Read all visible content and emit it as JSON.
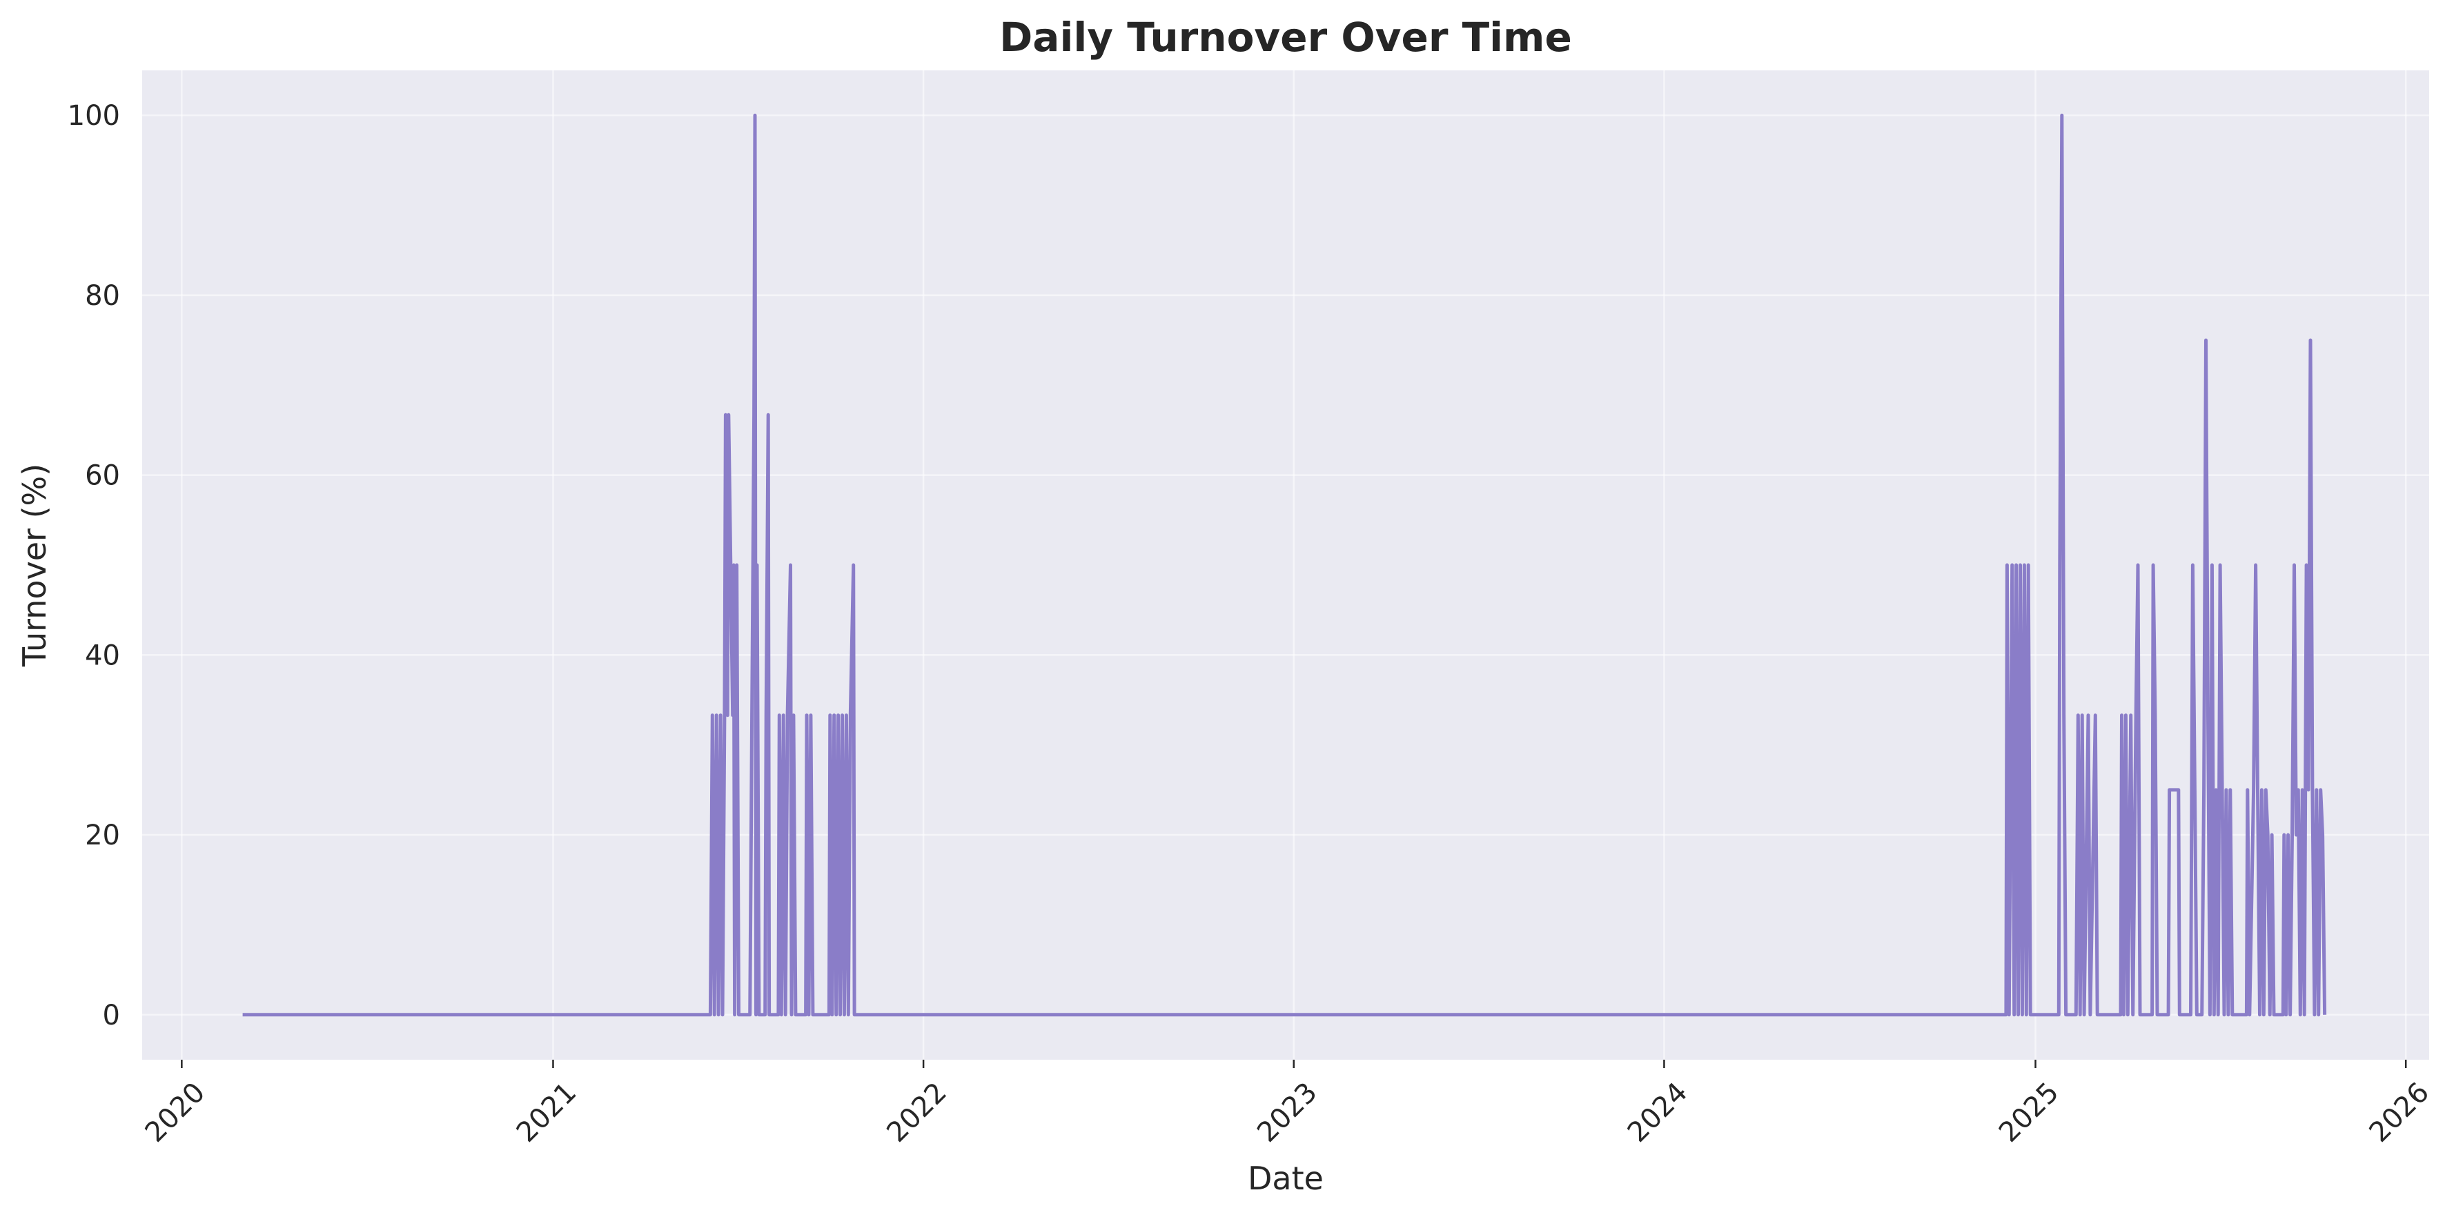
{
  "chart_data": {
    "type": "line",
    "title": "Daily Turnover Over Time",
    "xlabel": "Date",
    "ylabel": "Turnover (%)",
    "xlim": [
      "2019-11-23",
      "2026-01-24"
    ],
    "ylim": [
      -5,
      105
    ],
    "x_ticks": [
      "2020",
      "2021",
      "2022",
      "2023",
      "2024",
      "2025",
      "2026"
    ],
    "y_ticks": [
      0,
      20,
      40,
      60,
      80,
      100
    ],
    "grid": true,
    "legend": "none",
    "colors": {
      "line": "#8a7dc8",
      "plot_background": "#eaeaf2",
      "grid": "#ffffff"
    },
    "series": [
      {
        "points": [
          [
            "2020-03-01",
            0
          ],
          [
            "2021-06-05",
            0
          ],
          [
            "2021-06-07",
            33.3
          ],
          [
            "2021-06-09",
            0
          ],
          [
            "2021-06-11",
            33.3
          ],
          [
            "2021-06-13",
            0
          ],
          [
            "2021-06-15",
            33.3
          ],
          [
            "2021-06-17",
            0
          ],
          [
            "2021-06-19",
            33.3
          ],
          [
            "2021-06-20",
            66.7
          ],
          [
            "2021-06-22",
            33.3
          ],
          [
            "2021-06-23",
            66.7
          ],
          [
            "2021-06-25",
            50
          ],
          [
            "2021-06-27",
            33.3
          ],
          [
            "2021-06-28",
            50
          ],
          [
            "2021-06-29",
            0
          ],
          [
            "2021-07-01",
            50
          ],
          [
            "2021-07-03",
            0
          ],
          [
            "2021-07-14",
            0
          ],
          [
            "2021-07-16",
            33.3
          ],
          [
            "2021-07-18",
            66.7
          ],
          [
            "2021-07-19",
            100
          ],
          [
            "2021-07-20",
            0
          ],
          [
            "2021-07-21",
            50
          ],
          [
            "2021-07-23",
            0
          ],
          [
            "2021-07-29",
            0
          ],
          [
            "2021-07-30",
            33.3
          ],
          [
            "2021-08-01",
            66.7
          ],
          [
            "2021-08-02",
            0
          ],
          [
            "2021-08-11",
            0
          ],
          [
            "2021-08-12",
            33.3
          ],
          [
            "2021-08-14",
            0
          ],
          [
            "2021-08-16",
            33.3
          ],
          [
            "2021-08-18",
            0
          ],
          [
            "2021-08-20",
            33.3
          ],
          [
            "2021-08-23",
            50
          ],
          [
            "2021-08-24",
            0
          ],
          [
            "2021-08-26",
            33.3
          ],
          [
            "2021-08-28",
            0
          ],
          [
            "2021-09-07",
            0
          ],
          [
            "2021-09-08",
            33.3
          ],
          [
            "2021-09-10",
            0
          ],
          [
            "2021-09-12",
            33.3
          ],
          [
            "2021-09-14",
            0
          ],
          [
            "2021-09-30",
            0
          ],
          [
            "2021-10-01",
            33.3
          ],
          [
            "2021-10-03",
            0
          ],
          [
            "2021-10-05",
            33.3
          ],
          [
            "2021-10-07",
            0
          ],
          [
            "2021-10-09",
            33.3
          ],
          [
            "2021-10-11",
            0
          ],
          [
            "2021-10-13",
            33.3
          ],
          [
            "2021-10-15",
            0
          ],
          [
            "2021-10-17",
            33.3
          ],
          [
            "2021-10-19",
            0
          ],
          [
            "2021-10-21",
            33.3
          ],
          [
            "2021-10-24",
            50
          ],
          [
            "2021-10-25",
            0
          ],
          [
            "2024-12-03",
            0
          ],
          [
            "2024-12-04",
            50
          ],
          [
            "2024-12-06",
            0
          ],
          [
            "2024-12-09",
            50
          ],
          [
            "2024-12-11",
            0
          ],
          [
            "2024-12-13",
            50
          ],
          [
            "2024-12-15",
            0
          ],
          [
            "2024-12-17",
            50
          ],
          [
            "2024-12-19",
            0
          ],
          [
            "2024-12-21",
            50
          ],
          [
            "2024-12-23",
            0
          ],
          [
            "2024-12-25",
            50
          ],
          [
            "2024-12-27",
            0
          ],
          [
            "2025-01-24",
            0
          ],
          [
            "2025-01-25",
            50
          ],
          [
            "2025-01-27",
            100
          ],
          [
            "2025-01-29",
            33.3
          ],
          [
            "2025-01-31",
            0
          ],
          [
            "2025-02-10",
            0
          ],
          [
            "2025-02-12",
            33.3
          ],
          [
            "2025-02-14",
            0
          ],
          [
            "2025-02-16",
            33.3
          ],
          [
            "2025-02-18",
            0
          ],
          [
            "2025-02-22",
            33.3
          ],
          [
            "2025-02-24",
            0
          ],
          [
            "2025-03-01",
            33.3
          ],
          [
            "2025-03-03",
            0
          ],
          [
            "2025-03-26",
            0
          ],
          [
            "2025-03-27",
            33.3
          ],
          [
            "2025-03-29",
            0
          ],
          [
            "2025-03-31",
            33.3
          ],
          [
            "2025-04-02",
            0
          ],
          [
            "2025-04-05",
            33.3
          ],
          [
            "2025-04-07",
            0
          ],
          [
            "2025-04-10",
            33.3
          ],
          [
            "2025-04-12",
            50
          ],
          [
            "2025-04-14",
            0
          ],
          [
            "2025-04-26",
            0
          ],
          [
            "2025-04-27",
            50
          ],
          [
            "2025-04-29",
            33.3
          ],
          [
            "2025-05-01",
            0
          ],
          [
            "2025-05-12",
            0
          ],
          [
            "2025-05-13",
            25
          ],
          [
            "2025-05-22",
            25
          ],
          [
            "2025-05-23",
            0
          ],
          [
            "2025-06-03",
            0
          ],
          [
            "2025-06-05",
            50
          ],
          [
            "2025-06-07",
            25
          ],
          [
            "2025-06-09",
            0
          ],
          [
            "2025-06-14",
            0
          ],
          [
            "2025-06-16",
            25
          ],
          [
            "2025-06-18",
            75
          ],
          [
            "2025-06-20",
            33.3
          ],
          [
            "2025-06-22",
            0
          ],
          [
            "2025-06-24",
            50
          ],
          [
            "2025-06-26",
            0
          ],
          [
            "2025-06-28",
            25
          ],
          [
            "2025-06-30",
            0
          ],
          [
            "2025-07-02",
            50
          ],
          [
            "2025-07-04",
            25
          ],
          [
            "2025-07-06",
            0
          ],
          [
            "2025-07-08",
            25
          ],
          [
            "2025-07-10",
            0
          ],
          [
            "2025-07-12",
            25
          ],
          [
            "2025-07-14",
            0
          ],
          [
            "2025-07-28",
            0
          ],
          [
            "2025-07-29",
            25
          ],
          [
            "2025-07-31",
            0
          ],
          [
            "2025-08-04",
            25
          ],
          [
            "2025-08-06",
            50
          ],
          [
            "2025-08-08",
            25
          ],
          [
            "2025-08-10",
            0
          ],
          [
            "2025-08-12",
            25
          ],
          [
            "2025-08-14",
            0
          ],
          [
            "2025-08-16",
            25
          ],
          [
            "2025-08-18",
            20
          ],
          [
            "2025-08-20",
            0
          ],
          [
            "2025-08-22",
            20
          ],
          [
            "2025-08-24",
            0
          ],
          [
            "2025-09-02",
            0
          ],
          [
            "2025-09-03",
            20
          ],
          [
            "2025-09-05",
            0
          ],
          [
            "2025-09-07",
            20
          ],
          [
            "2025-09-09",
            0
          ],
          [
            "2025-09-11",
            20
          ],
          [
            "2025-09-13",
            50
          ],
          [
            "2025-09-15",
            20
          ],
          [
            "2025-09-17",
            25
          ],
          [
            "2025-09-19",
            0
          ],
          [
            "2025-09-21",
            25
          ],
          [
            "2025-09-23",
            0
          ],
          [
            "2025-09-25",
            50
          ],
          [
            "2025-09-27",
            25
          ],
          [
            "2025-09-29",
            75
          ],
          [
            "2025-10-01",
            25
          ],
          [
            "2025-10-03",
            0
          ],
          [
            "2025-10-05",
            25
          ],
          [
            "2025-10-07",
            0
          ],
          [
            "2025-10-09",
            25
          ],
          [
            "2025-10-11",
            20
          ],
          [
            "2025-10-13",
            0
          ]
        ]
      }
    ]
  }
}
